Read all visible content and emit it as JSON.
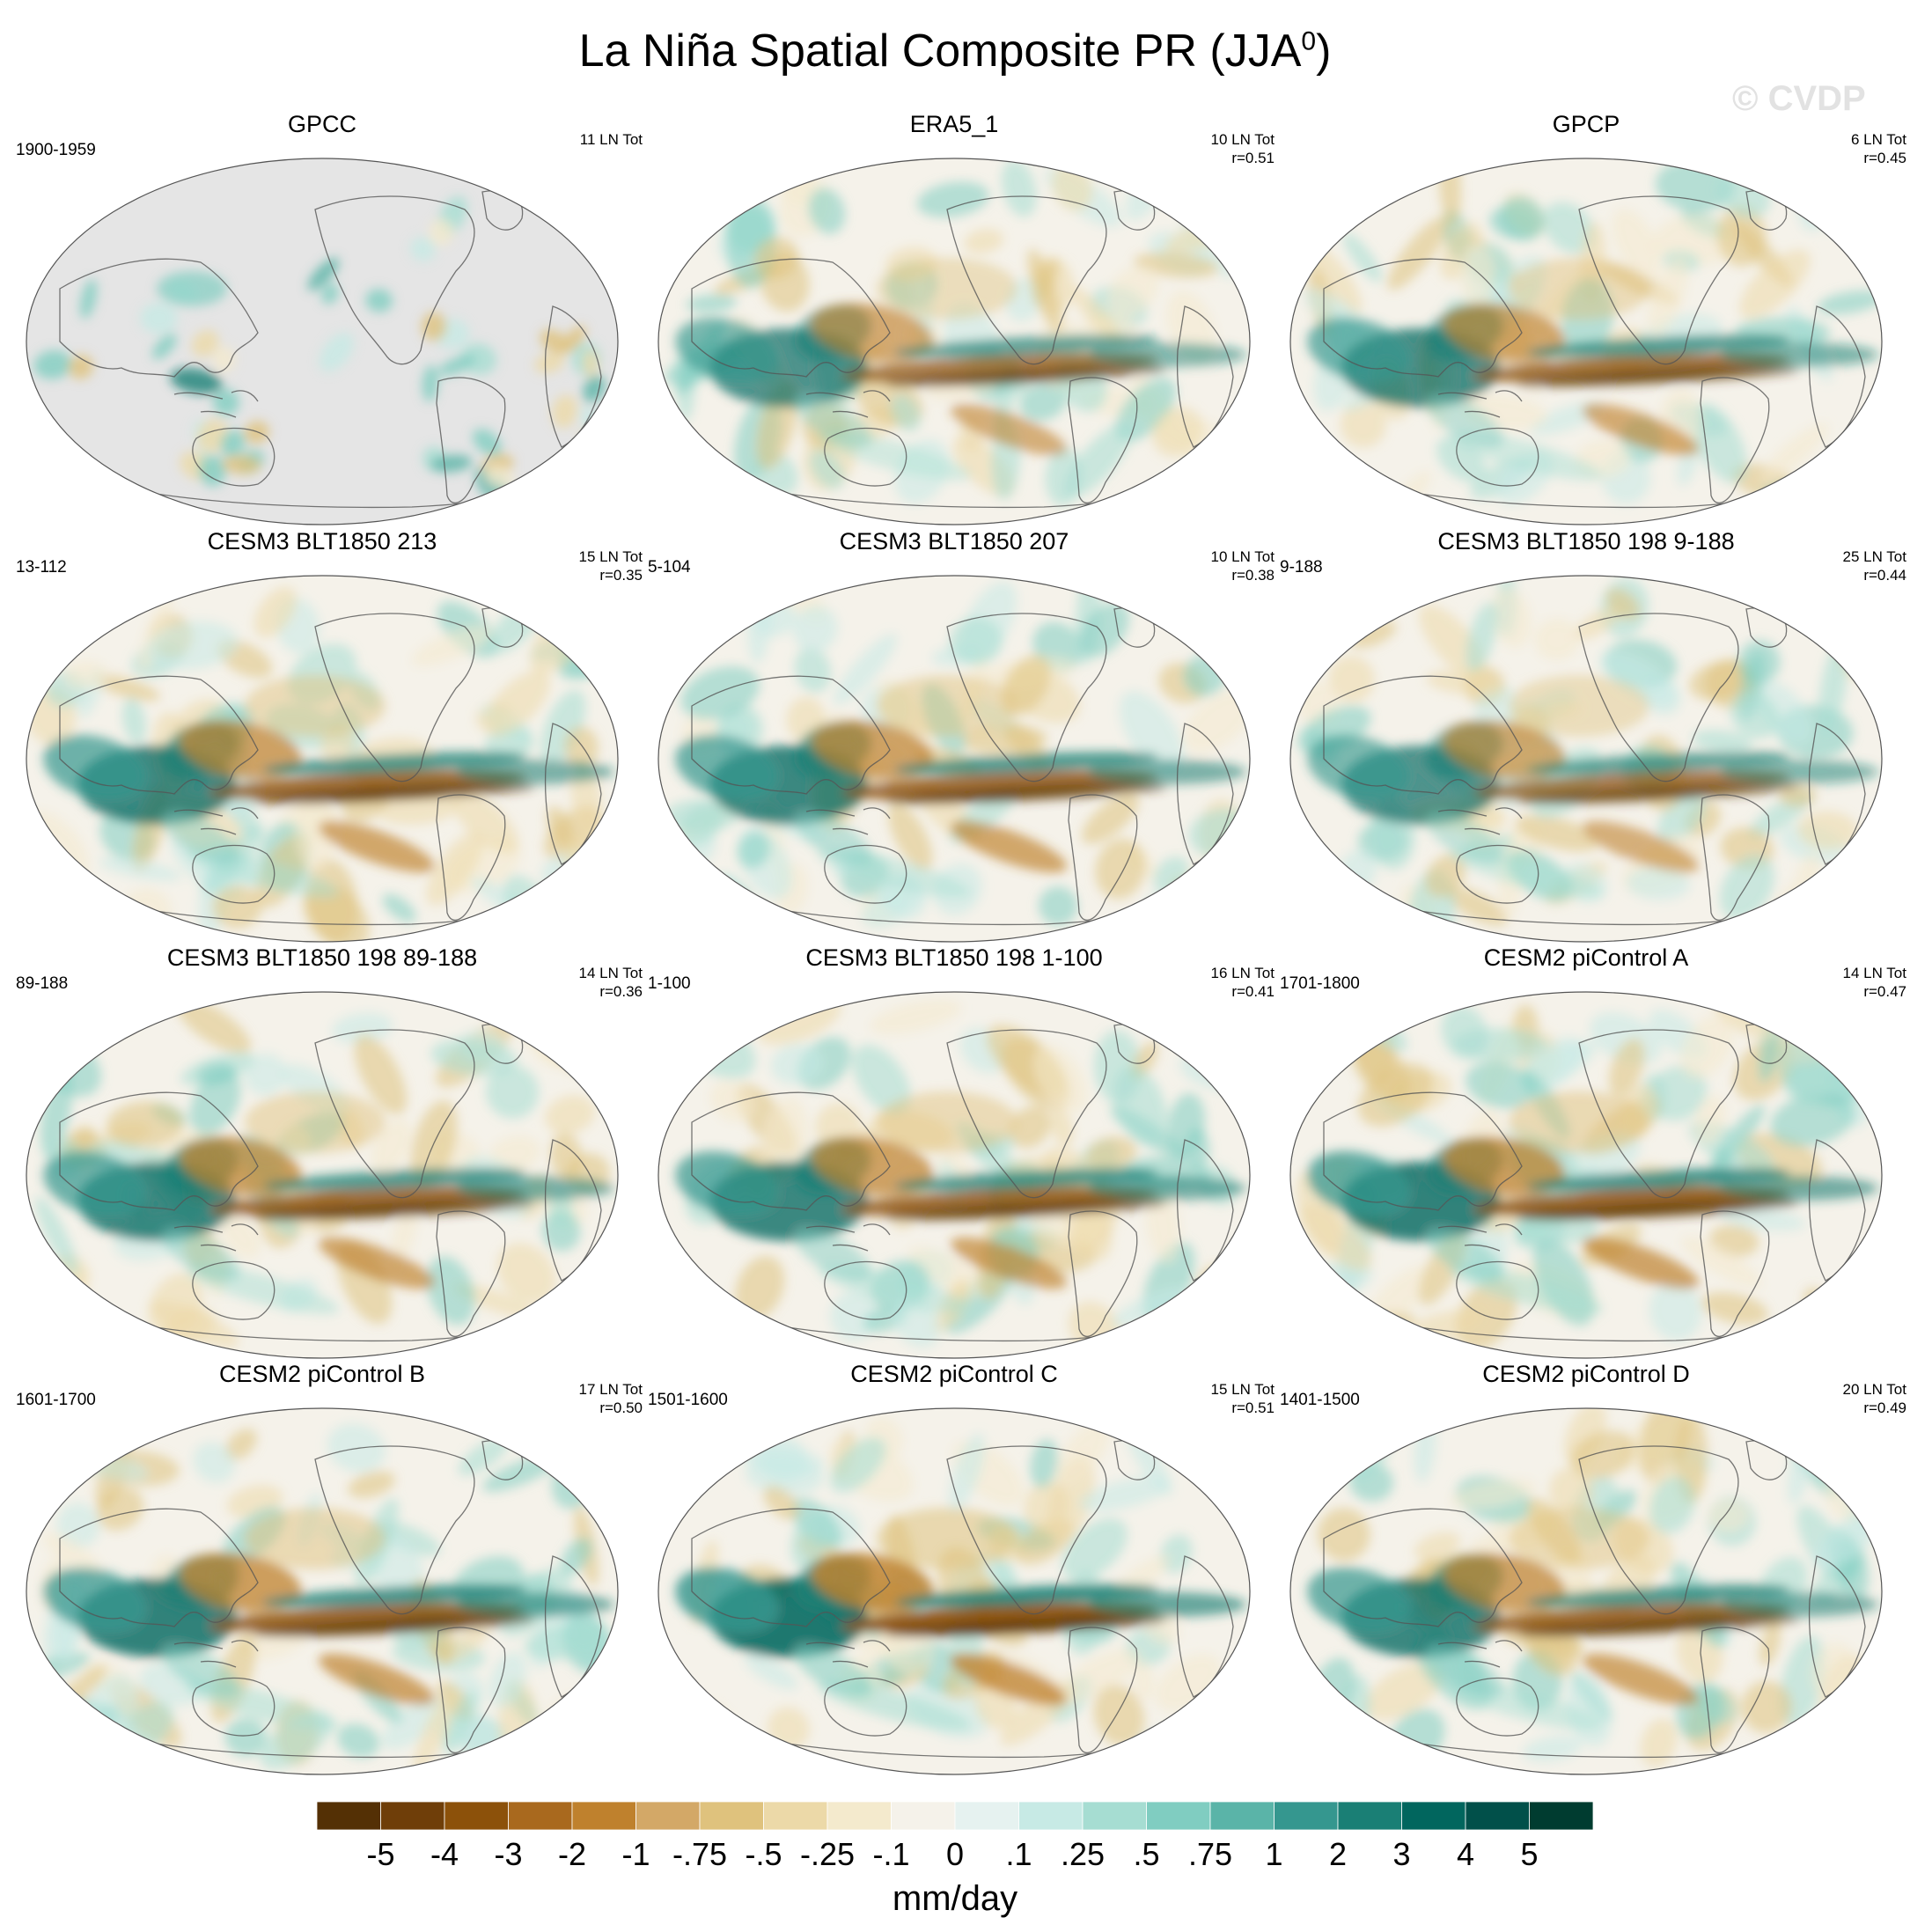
{
  "title": {
    "main": "La Niña Spatial Composite PR (JJA",
    "sup": "0",
    "close": ")"
  },
  "watermark": "© CVDP",
  "panels": [
    {
      "name": "GPCC",
      "period": "1900-1959",
      "events": "11 LN Tot",
      "r": "",
      "land_only": true,
      "strength": 0.35
    },
    {
      "name": "ERA5_1",
      "period": "",
      "events": "10 LN Tot",
      "r": "r=0.51",
      "land_only": false,
      "strength": 0.85
    },
    {
      "name": "GPCP",
      "period": "",
      "events": "6 LN Tot",
      "r": "r=0.45",
      "land_only": false,
      "strength": 0.9
    },
    {
      "name": "CESM3 BLT1850 213",
      "period": "13-112",
      "events": "15 LN Tot",
      "r": "r=0.35",
      "land_only": false,
      "strength": 0.95
    },
    {
      "name": "CESM3 BLT1850 207",
      "period": "5-104",
      "events": "10 LN Tot",
      "r": "r=0.38",
      "land_only": false,
      "strength": 0.95
    },
    {
      "name": "CESM3 BLT1850 198 9-188",
      "period": "9-188",
      "events": "25 LN Tot",
      "r": "r=0.44",
      "land_only": false,
      "strength": 0.85
    },
    {
      "name": "CESM3 BLT1850 198 89-188",
      "period": "89-188",
      "events": "14 LN Tot",
      "r": "r=0.36",
      "land_only": false,
      "strength": 0.95
    },
    {
      "name": "CESM3 BLT1850 198 1-100",
      "period": "1-100",
      "events": "16 LN Tot",
      "r": "r=0.41",
      "land_only": false,
      "strength": 0.95
    },
    {
      "name": "CESM2 piControl A",
      "period": "1701-1800",
      "events": "14 LN Tot",
      "r": "r=0.47",
      "land_only": false,
      "strength": 1.0
    },
    {
      "name": "CESM2 piControl B",
      "period": "1601-1700",
      "events": "17 LN Tot",
      "r": "r=0.50",
      "land_only": false,
      "strength": 1.0
    },
    {
      "name": "CESM2 piControl C",
      "period": "1501-1600",
      "events": "15 LN Tot",
      "r": "r=0.51",
      "land_only": false,
      "strength": 1.1
    },
    {
      "name": "CESM2 piControl D",
      "period": "1401-1500",
      "events": "20 LN Tot",
      "r": "r=0.49",
      "land_only": false,
      "strength": 0.95
    }
  ],
  "colorbar": {
    "labels": [
      "-5",
      "-4",
      "-3",
      "-2",
      "-1",
      "-.75",
      "-.5",
      "-.25",
      "-.1",
      "0",
      ".1",
      ".25",
      ".5",
      ".75",
      "1",
      "2",
      "3",
      "4",
      "5"
    ],
    "colors": [
      "#543005",
      "#6f3e09",
      "#8c510a",
      "#a9691e",
      "#bf812d",
      "#d3a867",
      "#dfc27d",
      "#ecd9a8",
      "#f4eacd",
      "#f5f2ea",
      "#e6f2f0",
      "#c7eae5",
      "#a6ddd2",
      "#80cdc1",
      "#5ab4a8",
      "#35978f",
      "#1a7f75",
      "#01665e",
      "#01504a",
      "#003c30"
    ],
    "unit": "mm/day"
  }
}
